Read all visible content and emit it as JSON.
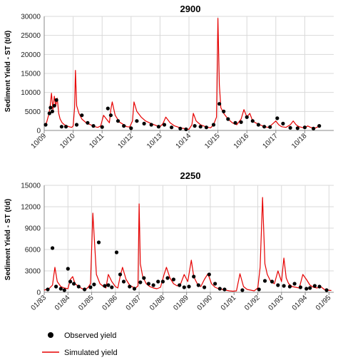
{
  "colors": {
    "simulated": "#e60000",
    "observed": "#000000",
    "grid": "#d9d9d9",
    "axis": "#888888"
  },
  "legend": {
    "observed_label": "Observed yield",
    "simulated_label": "Simulated yield"
  },
  "chart_data": [
    {
      "type": "line",
      "title": "2900",
      "ylabel": "Sediment Yield - ST (t/d)",
      "xlabel": "",
      "ylim": [
        0,
        30000
      ],
      "yticks": [
        0,
        5000,
        10000,
        15000,
        20000,
        25000,
        30000
      ],
      "grid": true,
      "xlim": [
        0,
        10
      ],
      "xticks": [
        {
          "x": 0,
          "label": "10/09"
        },
        {
          "x": 1,
          "label": "10/10"
        },
        {
          "x": 2,
          "label": "10/11"
        },
        {
          "x": 3,
          "label": "10/12"
        },
        {
          "x": 4,
          "label": "10/13"
        },
        {
          "x": 5,
          "label": "10/14"
        },
        {
          "x": 6,
          "label": "10/15"
        },
        {
          "x": 7,
          "label": "10/16"
        },
        {
          "x": 8,
          "label": "10/17"
        },
        {
          "x": 9,
          "label": "10/18"
        }
      ],
      "series": [
        {
          "name": "Simulated yield",
          "style": "line",
          "x": [
            0,
            0.08,
            0.15,
            0.2,
            0.25,
            0.3,
            0.35,
            0.4,
            0.45,
            0.5,
            0.55,
            0.62,
            0.7,
            0.85,
            0.95,
            1.0,
            1.05,
            1.08,
            1.12,
            1.2,
            1.3,
            1.45,
            1.6,
            1.75,
            1.85,
            1.95,
            2.05,
            2.15,
            2.25,
            2.3,
            2.35,
            2.45,
            2.6,
            2.75,
            2.85,
            2.95,
            3.05,
            3.1,
            3.2,
            3.35,
            3.5,
            3.7,
            3.9,
            4.0,
            4.1,
            4.2,
            4.35,
            4.5,
            4.7,
            4.9,
            5.0,
            5.1,
            5.15,
            5.25,
            5.4,
            5.6,
            5.75,
            5.85,
            5.95,
            6.0,
            6.05,
            6.1,
            6.2,
            6.35,
            6.5,
            6.65,
            6.8,
            6.9,
            7.0,
            7.1,
            7.2,
            7.3,
            7.45,
            7.6,
            7.75,
            7.9,
            8.0,
            8.1,
            8.2,
            8.35,
            8.5,
            8.6,
            8.7,
            8.8,
            8.9,
            9.0,
            9.1,
            9.2,
            9.35,
            9.5
          ],
          "y": [
            1500,
            2000,
            4000,
            6000,
            9800,
            5500,
            9000,
            6500,
            8500,
            4500,
            3000,
            2000,
            1500,
            1000,
            800,
            1200,
            6000,
            15800,
            6500,
            4500,
            3000,
            2000,
            1500,
            1000,
            800,
            1200,
            4000,
            3000,
            2000,
            5500,
            7500,
            4000,
            2200,
            1500,
            1000,
            900,
            2500,
            7500,
            5000,
            3500,
            2500,
            1800,
            1200,
            1000,
            1800,
            3500,
            2000,
            1200,
            700,
            400,
            300,
            1500,
            4500,
            2500,
            1500,
            900,
            700,
            1500,
            3500,
            29500,
            12000,
            6000,
            4500,
            3000,
            2000,
            1500,
            3000,
            5500,
            3500,
            4500,
            2500,
            2000,
            1500,
            1000,
            800,
            1800,
            2500,
            1500,
            1000,
            800,
            1500,
            2500,
            1500,
            1000,
            800,
            600,
            1200,
            800,
            600,
            1100
          ]
        },
        {
          "name": "Observed yield",
          "style": "scatter",
          "x": [
            0.05,
            0.18,
            0.22,
            0.28,
            0.35,
            0.42,
            0.6,
            0.75,
            1.12,
            1.3,
            1.5,
            1.7,
            2.0,
            2.2,
            2.3,
            2.55,
            2.75,
            3.0,
            3.2,
            3.45,
            3.7,
            3.95,
            4.15,
            4.4,
            4.7,
            4.9,
            5.2,
            5.4,
            5.6,
            5.85,
            6.05,
            6.2,
            6.35,
            6.6,
            6.8,
            7.0,
            7.2,
            7.4,
            7.6,
            7.8,
            8.05,
            8.25,
            8.5,
            8.75,
            9.0,
            9.3,
            9.5
          ],
          "y": [
            1500,
            4500,
            6000,
            5000,
            6500,
            8000,
            1000,
            1000,
            1500,
            4000,
            2000,
            1200,
            900,
            5800,
            4000,
            2500,
            1200,
            600,
            2500,
            1800,
            1500,
            1000,
            1500,
            800,
            500,
            300,
            1200,
            1000,
            800,
            1500,
            7000,
            5000,
            3000,
            2000,
            2200,
            3500,
            2500,
            1500,
            1000,
            900,
            3200,
            1800,
            700,
            600,
            800,
            500,
            1200
          ]
        }
      ]
    },
    {
      "type": "line",
      "title": "2250",
      "ylabel": "Sediment Yield - ST (t/d)",
      "xlabel": "",
      "ylim": [
        0,
        15000
      ],
      "yticks": [
        0,
        3000,
        6000,
        9000,
        12000,
        15000
      ],
      "grid": true,
      "xlim": [
        0,
        12.2
      ],
      "xticks": [
        {
          "x": 0,
          "label": "01/83"
        },
        {
          "x": 1,
          "label": "01/84"
        },
        {
          "x": 2,
          "label": "01/85"
        },
        {
          "x": 3,
          "label": "01/86"
        },
        {
          "x": 4,
          "label": "01/87"
        },
        {
          "x": 5,
          "label": "01/88"
        },
        {
          "x": 6,
          "label": "01/89"
        },
        {
          "x": 7,
          "label": "01/90"
        },
        {
          "x": 8,
          "label": "01/91"
        },
        {
          "x": 9,
          "label": "01/92"
        },
        {
          "x": 10,
          "label": "01/93"
        },
        {
          "x": 11,
          "label": "01/94"
        },
        {
          "x": 12,
          "label": "01/95"
        }
      ],
      "series": [
        {
          "name": "Simulated yield",
          "style": "line",
          "x": [
            0,
            0.2,
            0.35,
            0.45,
            0.55,
            0.7,
            0.85,
            1.0,
            1.1,
            1.2,
            1.3,
            1.45,
            1.6,
            1.75,
            1.85,
            1.95,
            2.05,
            2.2,
            2.35,
            2.5,
            2.6,
            2.7,
            2.85,
            3.0,
            3.1,
            3.2,
            3.3,
            3.45,
            3.6,
            3.75,
            3.85,
            3.95,
            4.0,
            4.05,
            4.15,
            4.3,
            4.45,
            4.6,
            4.75,
            4.9,
            5.05,
            5.15,
            5.3,
            5.45,
            5.6,
            5.75,
            5.9,
            6.05,
            6.2,
            6.3,
            6.45,
            6.6,
            6.75,
            6.9,
            7.05,
            7.2,
            7.35,
            7.5,
            7.65,
            7.8,
            7.95,
            8.1,
            8.25,
            8.4,
            8.55,
            8.7,
            8.85,
            9.0,
            9.1,
            9.2,
            9.3,
            9.4,
            9.55,
            9.7,
            9.85,
            10.0,
            10.1,
            10.2,
            10.3,
            10.45,
            10.6,
            10.75,
            10.9,
            11.05,
            11.2,
            11.35,
            11.5,
            11.65,
            11.8,
            11.95,
            12.1
          ],
          "y": [
            300,
            500,
            1000,
            3500,
            1500,
            800,
            600,
            500,
            1800,
            2200,
            1200,
            800,
            500,
            400,
            700,
            1200,
            11100,
            2500,
            1200,
            800,
            600,
            2500,
            1500,
            800,
            600,
            2200,
            3500,
            1800,
            1000,
            700,
            600,
            900,
            12400,
            4000,
            2200,
            1200,
            800,
            600,
            500,
            700,
            2500,
            3500,
            2000,
            1200,
            900,
            1200,
            2500,
            1500,
            4500,
            2200,
            1200,
            800,
            1800,
            2600,
            1200,
            700,
            500,
            400,
            300,
            200,
            150,
            200,
            2600,
            800,
            400,
            300,
            200,
            600,
            3500,
            13300,
            4000,
            2500,
            1500,
            1200,
            3000,
            1500,
            4800,
            2000,
            1200,
            800,
            700,
            600,
            2500,
            1800,
            1000,
            700,
            600,
            800,
            400,
            300,
            250
          ]
        },
        {
          "name": "Observed yield",
          "style": "scatter",
          "x": [
            0.15,
            0.35,
            0.5,
            0.7,
            0.85,
            1.0,
            1.1,
            1.25,
            1.45,
            1.7,
            1.95,
            2.1,
            2.3,
            2.55,
            2.7,
            2.85,
            3.05,
            3.2,
            3.35,
            3.6,
            3.8,
            4.05,
            4.2,
            4.4,
            4.6,
            4.8,
            5.0,
            5.2,
            5.45,
            5.7,
            5.9,
            6.1,
            6.3,
            6.5,
            6.75,
            6.95,
            7.2,
            7.4,
            7.6,
            8.35,
            9.05,
            9.3,
            9.6,
            9.85,
            10.1,
            10.35,
            10.55,
            10.8,
            11.05,
            11.2,
            11.4,
            11.6,
            11.9
          ],
          "y": [
            400,
            6200,
            800,
            500,
            300,
            3300,
            1500,
            1200,
            800,
            400,
            700,
            1100,
            7000,
            900,
            1000,
            700,
            5600,
            2500,
            1500,
            800,
            500,
            1400,
            2000,
            1200,
            1000,
            1500,
            1500,
            2000,
            1800,
            1000,
            700,
            800,
            2200,
            1000,
            700,
            2500,
            1200,
            500,
            400,
            300,
            400,
            1600,
            1500,
            1000,
            900,
            800,
            1200,
            700,
            500,
            600,
            900,
            800,
            300
          ]
        }
      ]
    }
  ]
}
